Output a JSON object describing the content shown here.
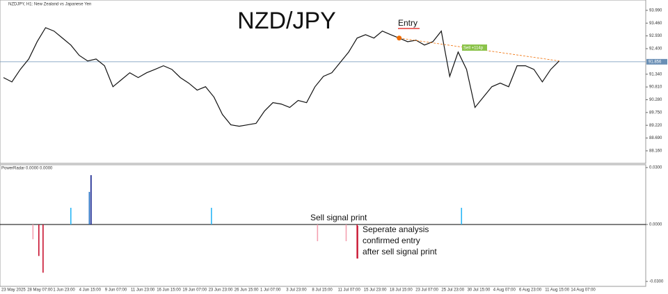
{
  "header": "NZDJPY, H1: New Zealand vs Japanese Yen",
  "annotations": {
    "title": "NZD/JPY",
    "entry": "Entry",
    "sell_tag": "Sell +114p",
    "sell_signal": "Sell signal print",
    "note": [
      "Seperate analysis",
      "confirmed entry",
      "after sell signal print"
    ]
  },
  "x_labels": [
    "23 May 2025",
    "28 May 07:00",
    "1 Jun 23:00",
    "4 Jun 15:00",
    "9 Jun 07:00",
    "11 Jun 23:00",
    "16 Jun 15:00",
    "19 Jun 07:00",
    "23 Jun 23:00",
    "26 Jun 15:00",
    "1 Jul 07:00",
    "3 Jul 23:00",
    "8 Jul 15:00",
    "11 Jul 07:00",
    "15 Jul 23:00",
    "18 Jul 15:00",
    "23 Jul 07:00",
    "25 Jul 23:00",
    "30 Jul 15:00",
    "4 Aug 07:00",
    "6 Aug 23:00",
    "11 Aug 15:00",
    "14 Aug 07:00"
  ],
  "chart_data": [
    {
      "type": "line",
      "color": "#111111",
      "values": [
        91.2,
        91.02,
        91.54,
        91.97,
        92.69,
        93.27,
        93.13,
        92.84,
        92.55,
        92.12,
        91.89,
        91.97,
        91.69,
        90.82,
        91.11,
        91.4,
        91.2,
        91.4,
        91.54,
        91.69,
        91.54,
        91.2,
        90.97,
        90.68,
        90.82,
        90.39,
        89.67,
        89.24,
        89.18,
        89.24,
        89.3,
        89.81,
        90.16,
        90.1,
        89.96,
        90.25,
        90.16,
        90.82,
        91.25,
        91.4,
        91.83,
        92.26,
        92.84,
        92.98,
        92.84,
        93.13,
        92.98,
        92.84,
        92.69,
        92.75,
        92.55,
        92.69,
        93.13,
        91.25,
        92.26,
        91.54,
        89.96,
        90.39,
        90.82,
        90.97,
        90.82,
        91.69,
        91.69,
        91.54,
        91.02,
        91.54,
        91.89
      ],
      "current_price": 91.856,
      "ylim": [
        87.64,
        94.42
      ],
      "yticks": [
        {
          "value": 93.99,
          "label": "93.990"
        },
        {
          "value": 93.46,
          "label": "93.460"
        },
        {
          "value": 92.93,
          "label": "92.930"
        },
        {
          "value": 92.4,
          "label": "92.400"
        },
        {
          "value": 91.34,
          "label": "91.340"
        },
        {
          "value": 90.81,
          "label": "90.810"
        },
        {
          "value": 90.28,
          "label": "90.280"
        },
        {
          "value": 89.75,
          "label": "89.750"
        },
        {
          "value": 89.22,
          "label": "89.220"
        },
        {
          "value": 88.69,
          "label": "88.690"
        },
        {
          "value": 88.16,
          "label": "88.160"
        }
      ]
    },
    {
      "type": "bar",
      "title": "PowerRadar 0.0000 0.0000",
      "x": [
        3.5,
        4.2,
        4.7,
        8.0,
        10.2,
        10.4,
        24.7,
        37.3,
        40.7,
        42.0,
        54.4
      ],
      "values": [
        -0.0078,
        -0.0166,
        -0.0254,
        0.0088,
        0.0172,
        0.026,
        0.0088,
        -0.0088,
        -0.0088,
        -0.0179,
        0.0088
      ],
      "colors": [
        "#f4a0b0",
        "#c8102e",
        "#c8102e",
        "#29b6f6",
        "#1565c0",
        "#0d1b8a",
        "#29b6f6",
        "#f4a0b0",
        "#f4a0b0",
        "#c8102e",
        "#29b6f6"
      ],
      "ylim": [
        -0.0326,
        0.0315
      ],
      "yticks": [
        {
          "value": 0.03,
          "label": "0.0300"
        },
        {
          "value": 0,
          "label": "0.0000"
        },
        {
          "value": -0.03,
          "label": "-0.0300"
        }
      ]
    }
  ]
}
